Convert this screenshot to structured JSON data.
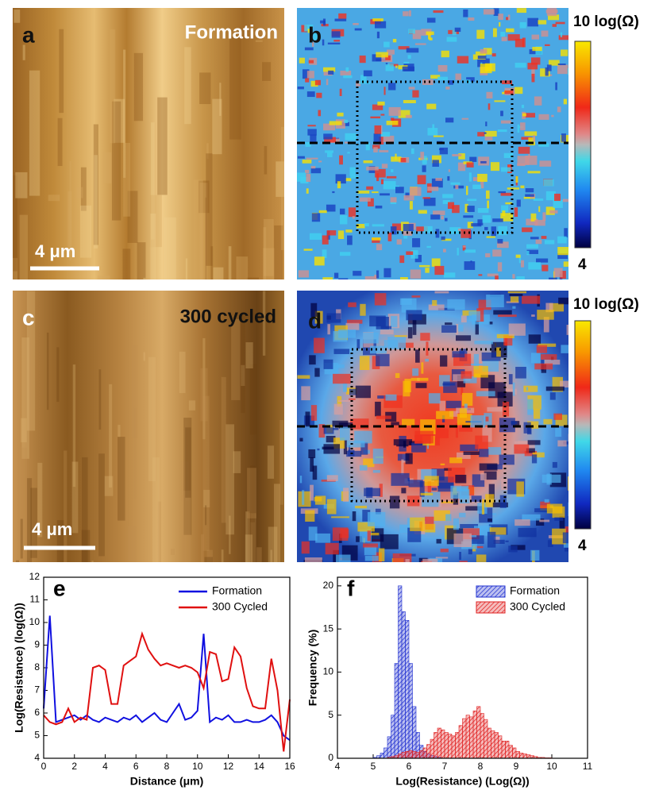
{
  "panels": [
    {
      "label": "a",
      "caption": "Formation",
      "scale_bar": "4 μm"
    },
    {
      "label": "b",
      "colorbar_max": "10 log(Ω)",
      "colorbar_min": "4"
    },
    {
      "label": "c",
      "caption": "300 cycled",
      "scale_bar": "4 μm"
    },
    {
      "label": "d",
      "colorbar_max": "10 log(Ω)",
      "colorbar_min": "4"
    }
  ],
  "chart_data": [
    {
      "type": "line",
      "label": "e",
      "xlabel": "Distance (μm)",
      "ylabel": "Log(Resistance) (log(Ω))",
      "xlim": [
        0,
        16
      ],
      "xticks": [
        0,
        2,
        4,
        6,
        8,
        10,
        12,
        14,
        16
      ],
      "ylim": [
        4,
        12
      ],
      "yticks": [
        4,
        5,
        6,
        7,
        8,
        9,
        10,
        11,
        12
      ],
      "x": [
        0,
        0.4,
        0.8,
        1.2,
        1.6,
        2,
        2.4,
        2.8,
        3.2,
        3.6,
        4,
        4.4,
        4.8,
        5.2,
        5.6,
        6,
        6.4,
        6.8,
        7.2,
        7.6,
        8,
        8.4,
        8.8,
        9.2,
        9.6,
        10,
        10.4,
        10.8,
        11.2,
        11.6,
        12,
        12.4,
        12.8,
        13.2,
        13.6,
        14,
        14.4,
        14.8,
        15.2,
        15.6,
        16
      ],
      "series": [
        {
          "name": "Formation",
          "color": "#1010e0",
          "values": [
            6.2,
            10.3,
            5.6,
            5.7,
            5.8,
            5.9,
            5.7,
            5.9,
            5.7,
            5.6,
            5.8,
            5.7,
            5.6,
            5.8,
            5.7,
            5.9,
            5.6,
            5.8,
            6.0,
            5.7,
            5.6,
            6.0,
            6.4,
            5.7,
            5.8,
            6.1,
            9.5,
            5.6,
            5.8,
            5.7,
            5.9,
            5.6,
            5.6,
            5.7,
            5.6,
            5.6,
            5.7,
            5.9,
            5.6,
            5.0,
            4.8
          ]
        },
        {
          "name": "300 Cycled",
          "color": "#e01010",
          "values": [
            5.9,
            5.6,
            5.5,
            5.6,
            6.2,
            5.6,
            5.8,
            5.7,
            8.0,
            8.1,
            7.9,
            6.4,
            6.4,
            8.1,
            8.3,
            8.5,
            9.5,
            8.8,
            8.4,
            8.1,
            8.2,
            8.1,
            8.0,
            8.1,
            8.0,
            7.8,
            7.1,
            8.7,
            8.6,
            7.4,
            7.5,
            8.9,
            8.5,
            7.1,
            6.3,
            6.2,
            6.2,
            8.4,
            7.0,
            4.3,
            6.6
          ]
        }
      ]
    },
    {
      "type": "histogram",
      "label": "f",
      "xlabel": "Log(Resistance) (Log(Ω))",
      "ylabel": "Frequency (%)",
      "xlim": [
        4,
        11
      ],
      "xticks": [
        4,
        5,
        6,
        7,
        8,
        9,
        10,
        11
      ],
      "ylim": [
        0,
        21
      ],
      "yticks": [
        0,
        5,
        10,
        15,
        20
      ],
      "bins": [
        5,
        5.1,
        5.2,
        5.3,
        5.4,
        5.5,
        5.6,
        5.7,
        5.8,
        5.9,
        6,
        6.1,
        6.2,
        6.3,
        6.4,
        6.5,
        6.6,
        6.7,
        6.8,
        6.9,
        7,
        7.1,
        7.2,
        7.3,
        7.4,
        7.5,
        7.6,
        7.7,
        7.8,
        7.9,
        8,
        8.1,
        8.2,
        8.3,
        8.4,
        8.5,
        8.6,
        8.7,
        8.8,
        8.9,
        9,
        9.1,
        9.2,
        9.3,
        9.4,
        9.5,
        9.6,
        9.7,
        9.8,
        9.9,
        10
      ],
      "series": [
        {
          "name": "Formation",
          "color": "#2030d0",
          "values": [
            0.1,
            0.3,
            0.6,
            1.2,
            2.5,
            5,
            11,
            20,
            17,
            16,
            11,
            6,
            3,
            1.5,
            0.8,
            0.5,
            0.3,
            0.2,
            0.1,
            0,
            0,
            0,
            0,
            0,
            0,
            0,
            0,
            0,
            0,
            0,
            0,
            0,
            0,
            0,
            0,
            0,
            0,
            0,
            0,
            0,
            0,
            0,
            0,
            0,
            0,
            0,
            0,
            0,
            0,
            0
          ]
        },
        {
          "name": "300 Cycled",
          "color": "#e02020",
          "values": [
            0,
            0,
            0,
            0,
            0.1,
            0.2,
            0.3,
            0.5,
            0.7,
            0.8,
            0.9,
            0.8,
            0.7,
            0.9,
            1.2,
            1.6,
            2.2,
            3.0,
            3.5,
            3.3,
            3.0,
            2.8,
            2.6,
            3.0,
            3.8,
            4.6,
            5.0,
            4.8,
            5.5,
            6.0,
            5.2,
            4.5,
            3.5,
            3.2,
            3.0,
            2.6,
            2.0,
            2.0,
            1.5,
            1.2,
            0.8,
            0.6,
            0.5,
            0.4,
            0.3,
            0.2,
            0.1,
            0.1,
            0.05,
            0.05
          ]
        }
      ]
    }
  ]
}
